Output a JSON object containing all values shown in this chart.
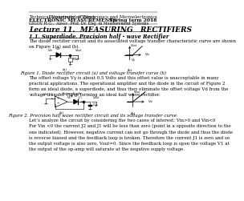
{
  "header_left_line1": "Technical University of Varna",
  "header_right_line1": "Department of Electronics and Microelectronics",
  "header_left_line2": "ELECTRONIC MEASUREMENTS",
  "header_right_line2": "Spring term 2018",
  "header_left_line3": "GIGOV H.G.,  Assoc. Prof. Dr. Eng. in Measurement Systems",
  "title": "Lecture 11.  MEASURING   RECTIFIERS",
  "section": "1.1. Superdiode. Precision half - wave Rectifier",
  "body1": "The diode rectifier circuit and its associated voltage transfer characteristic curve are shown\non Figure 1(a) and (b).",
  "fig1_caption": "Figure 1. Diode rectifier circuit (a) and voltage transfer curve (b)",
  "body2": "The offset voltage Vγ is about 0.5 Volts and this offset value is unacceptable in many\npractical applications. The operational amplifier and the diode in the circuit of Figure 2\nform an ideal diode, a superdiode, and thus they eliminate the offset voltage Vd from the\nvoltage transfer curve forming an ideal half wave rectifier.",
  "fig2_caption": "Figure 2. Precision half wave rectifier circuit and its voltage transfer curve.",
  "body3": "Let’s analyze the circuit by considering the two cases of interest: Vin>0 and Vin<0\nFor Vin <0 the current J2 and J1 will be less than zero (point in a opposite direction to the\none indicated). However, negative current can not go through the diode and thus the diode\nis reverse biased and the feedback loop is broken. Therefore the current J1 is zero and so\nthe output voltage is also zero, Vout=0. Since the feedback loop is open the voltage V1 at\nthe output of the op-amp will saturate at the negative supply voltage.",
  "bg_color": "#ffffff",
  "text_color": "#000000",
  "title_color": "#000000",
  "header_line_color": "#000000",
  "fs_header": 4.0,
  "fs_header_bold": 4.3,
  "fs_title": 6.5,
  "fs_section": 4.8,
  "fs_body": 4.0,
  "fs_caption": 4.0,
  "fs_small": 3.2
}
